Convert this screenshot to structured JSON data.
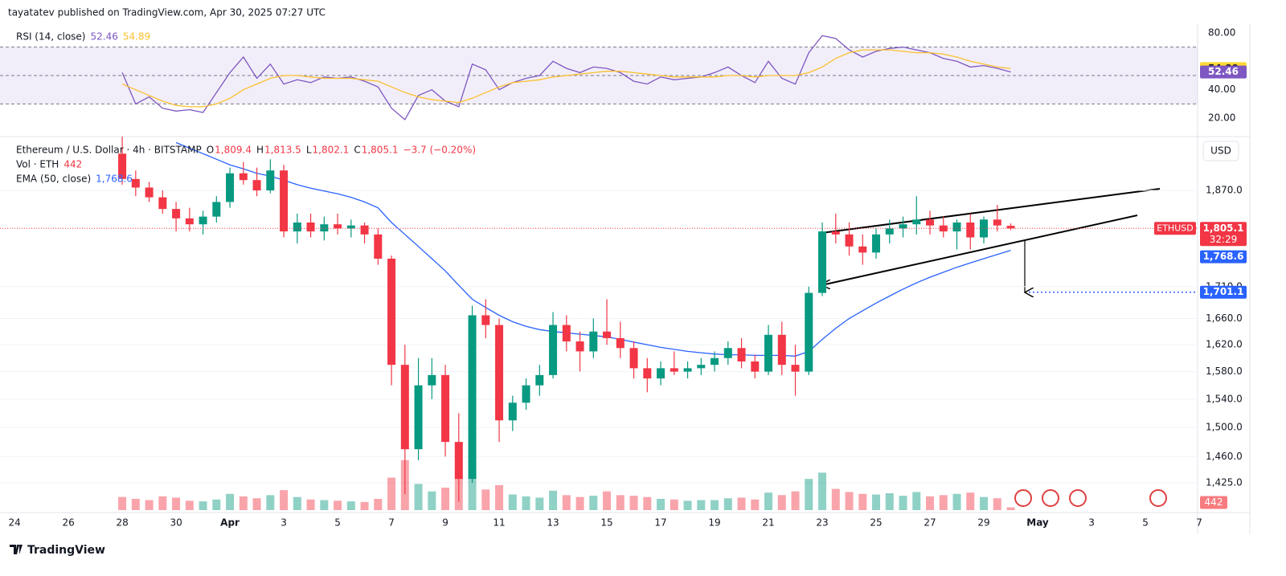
{
  "header": "tayatatev published on TradingView.com, Apr 30, 2025 07:27 UTC",
  "footer": "TradingView",
  "chart_data": [
    {
      "type": "line",
      "title": "RSI (14, close)",
      "x": [
        4,
        4.5,
        5,
        5.5,
        6,
        6.5,
        7,
        7.5,
        8,
        8.5,
        9,
        9.5,
        10,
        10.5,
        11,
        11.5,
        12,
        12.5,
        13,
        13.5,
        14,
        14.5,
        15,
        15.5,
        16,
        16.5,
        17,
        17.5,
        18,
        18.5,
        19,
        19.5,
        20,
        20.5,
        21,
        21.5,
        22,
        22.5,
        23,
        23.5,
        24,
        24.5,
        25,
        25.5,
        26,
        26.5,
        27,
        27.5,
        28,
        28.5,
        29,
        29.5,
        30,
        30.5,
        31,
        31.5,
        32,
        32.5,
        33,
        33.5,
        34,
        34.5,
        35,
        35.5,
        36,
        36.5,
        37
      ],
      "series": [
        {
          "name": "RSI",
          "color": "#7e57c2",
          "values": [
            52,
            30,
            35,
            27,
            25,
            26,
            24,
            38,
            52,
            63,
            48,
            58,
            44,
            47,
            45,
            49,
            48,
            49,
            46,
            42,
            27,
            19,
            36,
            40,
            32,
            28,
            58,
            54,
            40,
            45,
            48,
            50,
            60,
            55,
            52,
            56,
            55,
            52,
            46,
            44,
            49,
            47,
            48,
            49,
            52,
            56,
            50,
            45,
            60,
            48,
            44,
            66,
            78,
            76,
            68,
            63,
            67,
            69,
            70,
            68,
            66,
            62,
            60,
            56,
            57,
            55,
            52.46
          ]
        },
        {
          "name": "RSI MA",
          "color": "#fbc02d",
          "values": [
            44,
            40,
            36,
            32,
            29,
            28,
            28,
            30,
            34,
            40,
            44,
            48,
            50,
            50,
            49,
            48,
            48,
            48,
            47,
            46,
            42,
            38,
            35,
            33,
            32,
            31,
            34,
            38,
            42,
            45,
            46,
            47,
            49,
            50,
            51,
            52,
            53,
            53,
            52,
            51,
            50,
            49,
            49,
            49,
            49,
            50,
            50,
            49,
            50,
            50,
            50,
            52,
            56,
            62,
            66,
            68,
            68,
            68,
            67,
            66,
            66,
            65,
            63,
            60,
            58,
            56,
            54.89
          ]
        }
      ],
      "bands": [
        30,
        50,
        70
      ],
      "ylim": [
        9.9,
        85
      ],
      "yticks": [
        {
          "value": 80,
          "label": "80.00"
        },
        {
          "value": 40,
          "label": "40.00"
        },
        {
          "value": 20,
          "label": "20.00"
        }
      ]
    },
    {
      "type": "candlestick",
      "title": "Ethereum / U.S. Dollar · 4h · BITSTAMP",
      "ohlc_legend": [
        {
          "key": "O",
          "label": "1,809.4"
        },
        {
          "key": "H",
          "label": "1,813.5"
        },
        {
          "key": "L",
          "label": "1,802.1"
        },
        {
          "key": "C",
          "label": "1,805.1"
        }
      ],
      "change": "−3.7 (−0.20%)",
      "symbol": "ETHUSD",
      "currency": "USD",
      "up_color": "#089981",
      "down_color": "#f23645",
      "x": [
        4,
        4.5,
        5,
        5.5,
        6,
        6.5,
        7,
        7.5,
        8,
        8.5,
        9,
        9.5,
        10,
        10.5,
        11,
        11.5,
        12,
        12.5,
        13,
        13.5,
        14,
        14.5,
        15,
        15.5,
        16,
        16.5,
        17,
        17.5,
        18,
        18.5,
        19,
        19.5,
        20,
        20.5,
        21,
        21.5,
        22,
        22.5,
        23,
        23.5,
        24,
        24.5,
        25,
        25.5,
        26,
        26.5,
        27,
        27.5,
        28,
        28.5,
        29,
        29.5,
        30,
        30.5,
        31,
        31.5,
        32,
        32.5,
        33,
        33.5,
        34,
        34.5,
        35,
        35.5,
        36,
        36.5,
        37
      ],
      "open": [
        1935,
        1890,
        1875,
        1858,
        1838,
        1822,
        1812,
        1825,
        1850,
        1900,
        1888,
        1870,
        1905,
        1800,
        1815,
        1800,
        1812,
        1805,
        1810,
        1795,
        1755,
        1590,
        1470,
        1560,
        1575,
        1480,
        1430,
        1665,
        1650,
        1510,
        1535,
        1560,
        1575,
        1650,
        1625,
        1610,
        1640,
        1630,
        1615,
        1585,
        1570,
        1585,
        1580,
        1585,
        1590,
        1600,
        1615,
        1595,
        1580,
        1635,
        1590,
        1580,
        1700,
        1800,
        1795,
        1775,
        1765,
        1795,
        1805,
        1812,
        1820,
        1810,
        1800,
        1815,
        1790,
        1820,
        1809.4
      ],
      "high": [
        1966,
        1905,
        1885,
        1870,
        1850,
        1840,
        1835,
        1860,
        1910,
        1920,
        1910,
        1925,
        1915,
        1830,
        1830,
        1825,
        1830,
        1820,
        1815,
        1805,
        1760,
        1620,
        1600,
        1600,
        1590,
        1520,
        1680,
        1690,
        1660,
        1545,
        1570,
        1590,
        1670,
        1665,
        1640,
        1660,
        1690,
        1655,
        1625,
        1600,
        1595,
        1610,
        1595,
        1600,
        1610,
        1625,
        1630,
        1605,
        1650,
        1655,
        1620,
        1710,
        1815,
        1830,
        1815,
        1795,
        1805,
        1820,
        1825,
        1860,
        1835,
        1825,
        1820,
        1830,
        1825,
        1845,
        1813.5
      ],
      "low": [
        1880,
        1860,
        1850,
        1830,
        1800,
        1800,
        1795,
        1815,
        1840,
        1880,
        1860,
        1865,
        1790,
        1780,
        1790,
        1785,
        1795,
        1790,
        1780,
        1745,
        1560,
        1410,
        1455,
        1540,
        1460,
        1400,
        1425,
        1630,
        1480,
        1495,
        1525,
        1545,
        1570,
        1610,
        1580,
        1600,
        1620,
        1600,
        1570,
        1550,
        1560,
        1575,
        1570,
        1575,
        1580,
        1590,
        1585,
        1570,
        1575,
        1575,
        1545,
        1575,
        1695,
        1780,
        1760,
        1745,
        1755,
        1780,
        1790,
        1795,
        1795,
        1790,
        1770,
        1770,
        1780,
        1800,
        1802.1
      ],
      "close": [
        1890,
        1875,
        1858,
        1838,
        1822,
        1812,
        1825,
        1850,
        1900,
        1888,
        1870,
        1905,
        1800,
        1815,
        1800,
        1812,
        1805,
        1810,
        1795,
        1755,
        1590,
        1470,
        1560,
        1575,
        1480,
        1430,
        1665,
        1650,
        1510,
        1535,
        1560,
        1575,
        1650,
        1625,
        1610,
        1640,
        1630,
        1615,
        1585,
        1570,
        1585,
        1580,
        1585,
        1590,
        1600,
        1615,
        1595,
        1580,
        1635,
        1590,
        1580,
        1700,
        1800,
        1795,
        1775,
        1765,
        1795,
        1805,
        1812,
        1820,
        1810,
        1800,
        1815,
        1790,
        1820,
        1810,
        1805.1
      ],
      "volume": {
        "name": "Vol · ETH",
        "ylim": [
          0,
          9000
        ],
        "values": [
          2100,
          1800,
          1600,
          2200,
          2000,
          1500,
          1400,
          1700,
          2600,
          2200,
          1900,
          2400,
          3200,
          2100,
          1700,
          1600,
          1500,
          1400,
          1300,
          1800,
          5200,
          8000,
          4200,
          3000,
          3600,
          5600,
          5200,
          3300,
          4000,
          2500,
          2200,
          2000,
          3100,
          2400,
          2100,
          2300,
          3000,
          2400,
          2300,
          2100,
          1800,
          1700,
          1500,
          1600,
          1600,
          1900,
          2000,
          1700,
          2800,
          2400,
          3000,
          5000,
          6000,
          3400,
          2900,
          2600,
          2500,
          2700,
          2300,
          2900,
          2200,
          2400,
          2600,
          2800,
          2100,
          1900,
          442
        ]
      },
      "ema": {
        "name": "EMA (50, close)",
        "color": "#2962ff",
        "values": [
          null,
          null,
          null,
          null,
          1955,
          1945,
          1935,
          1925,
          1915,
          1908,
          1900,
          1895,
          1888,
          1880,
          1874,
          1869,
          1864,
          1858,
          1850,
          1840,
          1815,
          1795,
          1775,
          1755,
          1735,
          1712,
          1690,
          1677,
          1665,
          1655,
          1648,
          1643,
          1640,
          1638,
          1636,
          1634,
          1632,
          1628,
          1624,
          1620,
          1616,
          1613,
          1610,
          1608,
          1606,
          1605,
          1605,
          1604,
          1604,
          1604,
          1603,
          1610,
          1628,
          1645,
          1660,
          1672,
          1684,
          1695,
          1706,
          1716,
          1725,
          1733,
          1741,
          1748,
          1755,
          1762,
          1768.6
        ]
      },
      "last_price": {
        "value": 1805.1,
        "label": "1,805.1"
      },
      "countdown": "32:29",
      "ema_tag": {
        "value": 1768.6,
        "label": "1,768.6"
      },
      "target": {
        "value": 1701.1,
        "label": "1,701.1"
      },
      "log_scale": true,
      "grid": true,
      "ylim": [
        1387,
        1966
      ],
      "yticks": [
        {
          "value": 1870,
          "label": "1,870.0"
        },
        {
          "value": 1710,
          "label": "1,710.0"
        },
        {
          "value": 1660,
          "label": "1,660.0"
        },
        {
          "value": 1620,
          "label": "1,620.0"
        },
        {
          "value": 1580,
          "label": "1,580.0"
        },
        {
          "value": 1540,
          "label": "1,540.0"
        },
        {
          "value": 1500,
          "label": "1,500.0"
        },
        {
          "value": 1460,
          "label": "1,460.0"
        },
        {
          "value": 1425,
          "label": "1,425.0"
        }
      ],
      "xlim": [
        -0.54,
        43.94
      ],
      "xticks": [
        {
          "value": 0,
          "label": "24"
        },
        {
          "value": 2,
          "label": "26"
        },
        {
          "value": 4,
          "label": "28"
        },
        {
          "value": 6,
          "label": "30"
        },
        {
          "value": 8,
          "label": "Apr"
        },
        {
          "value": 10,
          "label": "3"
        },
        {
          "value": 12,
          "label": "5"
        },
        {
          "value": 14,
          "label": "7"
        },
        {
          "value": 16,
          "label": "9"
        },
        {
          "value": 18,
          "label": "11"
        },
        {
          "value": 20,
          "label": "13"
        },
        {
          "value": 22,
          "label": "15"
        },
        {
          "value": 24,
          "label": "17"
        },
        {
          "value": 26,
          "label": "19"
        },
        {
          "value": 28,
          "label": "21"
        },
        {
          "value": 30,
          "label": "23"
        },
        {
          "value": 32,
          "label": "25"
        },
        {
          "value": 34,
          "label": "27"
        },
        {
          "value": 36,
          "label": "29"
        },
        {
          "value": 38,
          "label": "May"
        },
        {
          "value": 40,
          "label": "3"
        },
        {
          "value": 42,
          "label": "5"
        },
        {
          "value": 44,
          "label": "7"
        }
      ]
    }
  ]
}
